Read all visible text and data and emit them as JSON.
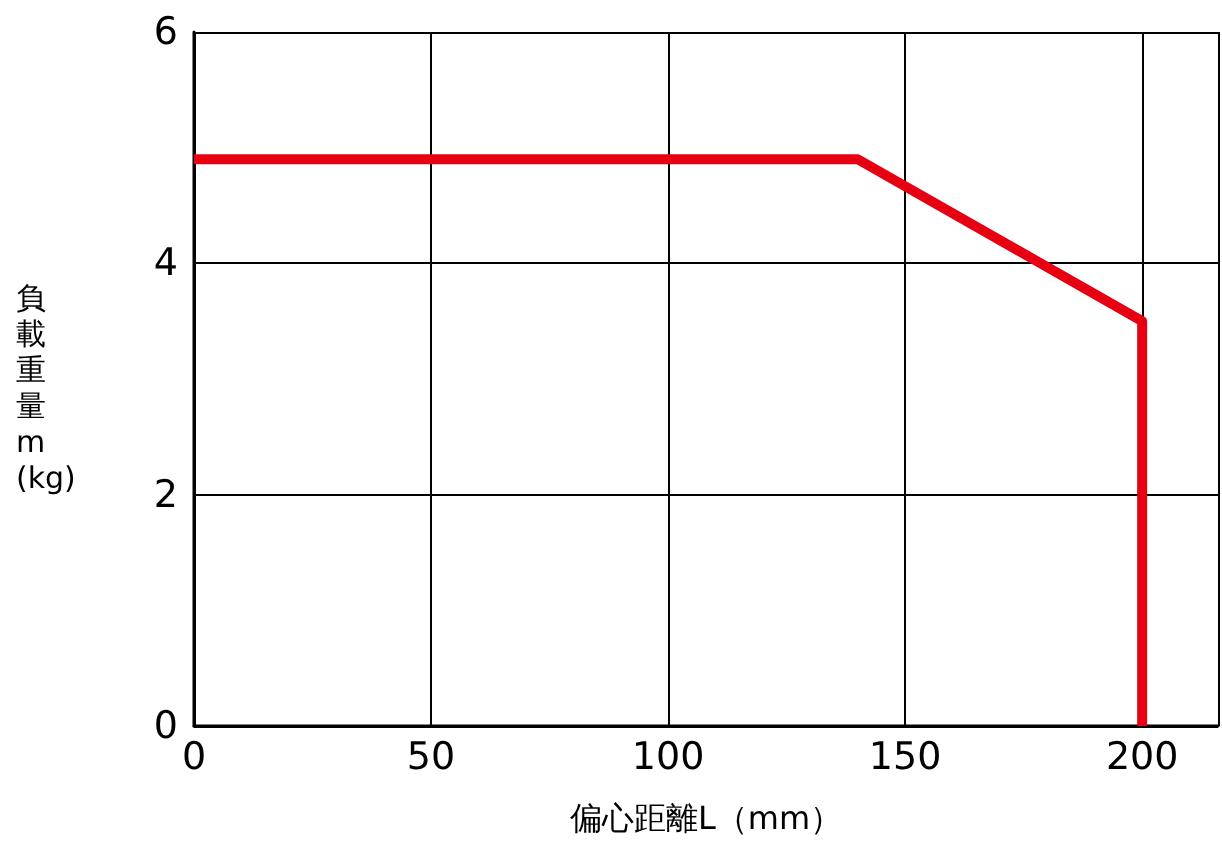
{
  "chart_data": {
    "type": "line",
    "xlabel": "偏心距離L（mm）",
    "ylabel": "負載重量m(kg)",
    "x": [
      0,
      140,
      200,
      200
    ],
    "series": [
      {
        "color": "#e60012",
        "values": [
          4.9,
          4.9,
          3.5,
          0
        ]
      }
    ],
    "xlim": [
      0,
      216
    ],
    "xticks": [
      0,
      50,
      100,
      150,
      200
    ],
    "ylim": [
      0,
      6
    ],
    "yticks": [
      0,
      2,
      4,
      6
    ],
    "grid": true,
    "marker": "none",
    "line_style": "solid"
  }
}
